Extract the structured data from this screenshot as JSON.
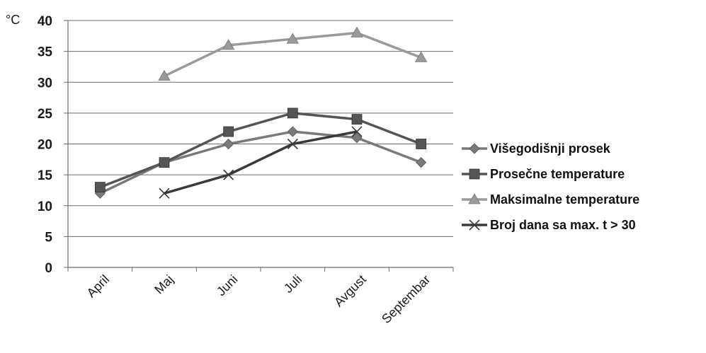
{
  "chart_data": {
    "type": "line",
    "ylabel": "°C",
    "ylim": [
      0,
      40
    ],
    "yticks": [
      0,
      5,
      10,
      15,
      20,
      25,
      30,
      35,
      40
    ],
    "categories": [
      "April",
      "Maj",
      "Juni",
      "Juli",
      "Avgust",
      "Septembar"
    ],
    "grid": true,
    "legend_position": "right",
    "series": [
      {
        "name": "Višegodišnji prosek",
        "marker": "diamond",
        "color": "#7a7a7a",
        "values": [
          12,
          17,
          20,
          22,
          21,
          17
        ]
      },
      {
        "name": "Prosečne temperature",
        "marker": "square",
        "color": "#555555",
        "values": [
          13,
          17,
          22,
          25,
          24,
          20
        ]
      },
      {
        "name": "Maksimalne temperature",
        "marker": "triangle",
        "color": "#9a9a9a",
        "values": [
          null,
          31,
          36,
          37,
          38,
          34
        ]
      },
      {
        "name": "Broj dana sa max. t > 30",
        "marker": "x",
        "color": "#3a3a3a",
        "values": [
          null,
          12,
          15,
          20,
          22,
          null
        ]
      }
    ]
  }
}
